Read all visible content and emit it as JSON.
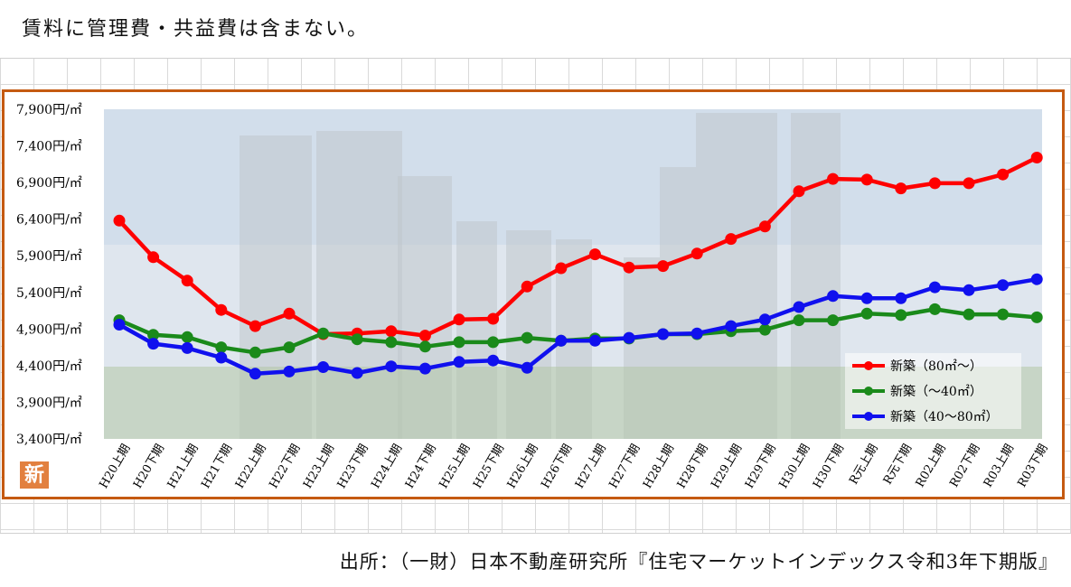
{
  "header": {
    "note": "賃料に管理費・共益費は含まない。"
  },
  "footer": {
    "source": "出所：（一財）日本不動産研究所『住宅マーケットインデックス令和3年下期版』"
  },
  "logo": {
    "glyph": "新"
  },
  "colors": {
    "frame": "#c55a11",
    "red": "#ff0000",
    "green": "#1a8a1a",
    "blue": "#1010ee"
  },
  "chart_data": {
    "type": "line",
    "title": "",
    "xlabel": "",
    "ylabel": "",
    "ylim": [
      3400,
      7900
    ],
    "yticks": [
      3400,
      3900,
      4400,
      4900,
      5400,
      5900,
      6400,
      6900,
      7400,
      7900
    ],
    "ytick_labels": [
      "3,400円/㎡",
      "3,900円/㎡",
      "4,400円/㎡",
      "4,900円/㎡",
      "5,400円/㎡",
      "5,900円/㎡",
      "6,400円/㎡",
      "6,900円/㎡",
      "7,400円/㎡",
      "7,900円/㎡"
    ],
    "categories": [
      "H20上期",
      "H20下期",
      "H21上期",
      "H21下期",
      "H22上期",
      "H22下期",
      "H23上期",
      "H23下期",
      "H24上期",
      "H24下期",
      "H25上期",
      "H25下期",
      "H26上期",
      "H26下期",
      "H27上期",
      "H27下期",
      "H28上期",
      "H28下期",
      "H29上期",
      "H29下期",
      "H30上期",
      "H30下期",
      "R元上期",
      "R元下期",
      "R02上期",
      "R02下期",
      "R03上期",
      "R03下期"
    ],
    "legend_position": "bottom-right",
    "series": [
      {
        "name": "新築（80㎡～）",
        "color": "#ff0000",
        "values": [
          6380,
          5880,
          5560,
          5160,
          4940,
          5110,
          4830,
          4840,
          4870,
          4810,
          5030,
          5040,
          5480,
          5730,
          5920,
          5740,
          5760,
          5930,
          6130,
          6300,
          6780,
          6950,
          6940,
          6820,
          6890,
          6890,
          7010,
          7240
        ]
      },
      {
        "name": "新築（～40㎡）",
        "color": "#1a8a1a",
        "values": [
          5020,
          4820,
          4790,
          4650,
          4580,
          4650,
          4840,
          4760,
          4720,
          4660,
          4720,
          4720,
          4780,
          4740,
          4770,
          4770,
          4830,
          4830,
          4870,
          4890,
          5020,
          5020,
          5110,
          5090,
          5170,
          5100,
          5100,
          5060
        ]
      },
      {
        "name": "新築（40～80㎡）",
        "color": "#1010ee",
        "values": [
          4960,
          4700,
          4640,
          4510,
          4290,
          4320,
          4380,
          4300,
          4390,
          4360,
          4450,
          4470,
          4370,
          4740,
          4740,
          4780,
          4830,
          4840,
          4940,
          5030,
          5200,
          5350,
          5320,
          5320,
          5470,
          5430,
          5500,
          5580
        ]
      }
    ]
  }
}
